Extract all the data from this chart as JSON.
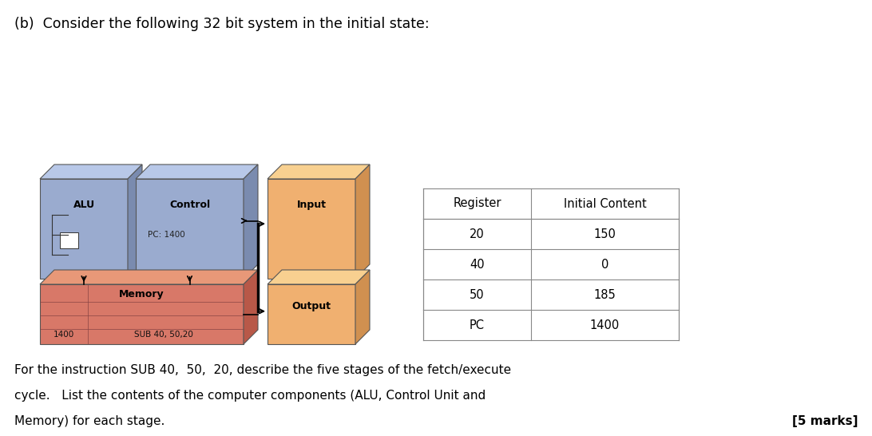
{
  "title": "(b)  Consider the following 32 bit system in the initial state:",
  "footer_line1": "For the instruction SUB 40,  50,  20, describe the five stages of the fetch/execute",
  "footer_line2": "cycle.   List the contents of the computer components (ALU, Control Unit and",
  "footer_line3": "Memory) for each stage.",
  "footer_marks": "[5 marks]",
  "table_headers": [
    "Register",
    "Initial Content"
  ],
  "table_rows": [
    [
      "20",
      "150"
    ],
    [
      "40",
      "0"
    ],
    [
      "50",
      "185"
    ],
    [
      "PC",
      "1400"
    ]
  ],
  "alu_label": "ALU",
  "control_label": "Control",
  "pc_label": "PC: 1400",
  "input_label": "Input",
  "output_label": "Output",
  "memory_label": "Memory",
  "memory_addr": "1400",
  "memory_instr": "SUB 40, 50,20",
  "color_blue_light": "#a8b8d8",
  "color_blue_mid": "#b0c0e0",
  "color_blue_top": "#9090c0",
  "color_orange_light": "#f0c090",
  "color_orange_mid": "#e8a860",
  "color_red_light": "#e89080",
  "color_red_mid": "#d07060",
  "color_white": "#ffffff",
  "color_black": "#000000",
  "bg_color": "#ffffff"
}
